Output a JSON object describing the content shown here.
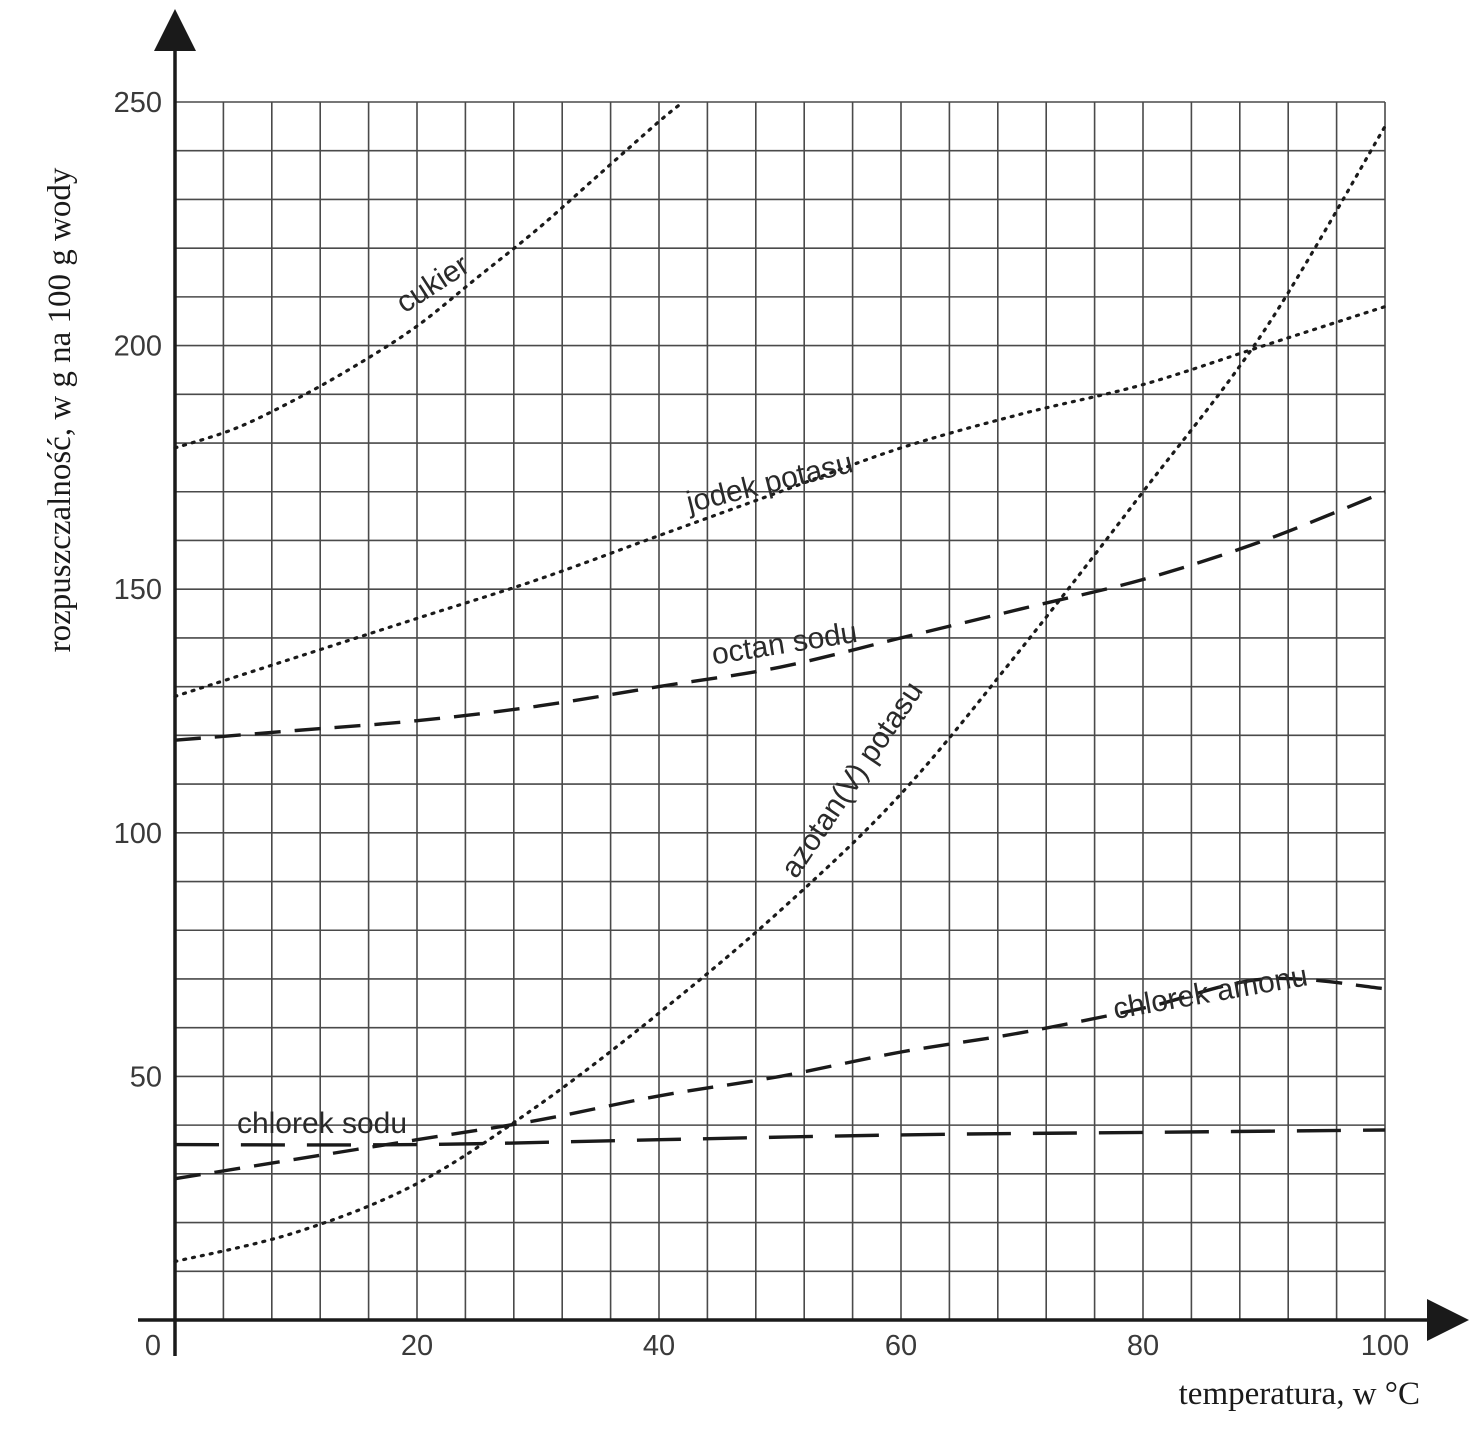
{
  "chart_data": {
    "type": "line",
    "title": "",
    "xlabel": "temperatura, w °C",
    "ylabel": "rozpuszczalność, w g na 100 g wody",
    "xlim": [
      0,
      100
    ],
    "ylim": [
      0,
      250
    ],
    "x_ticks": [
      0,
      20,
      40,
      60,
      80,
      100
    ],
    "y_ticks": [
      50,
      100,
      150,
      200,
      250
    ],
    "grid": true,
    "legend": "none",
    "series": [
      {
        "name": "cukier",
        "style": "dotted",
        "x": [
          0,
          5,
          10,
          15,
          20,
          25,
          30,
          35,
          40,
          42
        ],
        "y": [
          179,
          183,
          189,
          196,
          204,
          214,
          224,
          235,
          246,
          250
        ]
      },
      {
        "name": "jodek potasu",
        "style": "dotted",
        "x": [
          0,
          10,
          20,
          30,
          40,
          50,
          60,
          70,
          80,
          90,
          100
        ],
        "y": [
          128,
          136,
          144,
          152,
          161,
          170,
          179,
          186,
          192,
          200,
          208
        ]
      },
      {
        "name": "octan sodu",
        "style": "dashed",
        "x": [
          0,
          10,
          20,
          30,
          40,
          50,
          60,
          70,
          80,
          90,
          100
        ],
        "y": [
          119,
          121,
          123,
          126,
          130,
          134,
          140,
          146,
          152,
          160,
          170
        ]
      },
      {
        "name": "azotan(V) potasu",
        "style": "dotted",
        "x": [
          0,
          10,
          20,
          30,
          40,
          50,
          60,
          70,
          80,
          90,
          100
        ],
        "y": [
          12,
          18,
          28,
          44,
          63,
          84,
          108,
          138,
          170,
          203,
          245
        ]
      },
      {
        "name": "chlorek amonu",
        "style": "dashed",
        "x": [
          0,
          10,
          20,
          30,
          40,
          50,
          60,
          70,
          80,
          90,
          100
        ],
        "y": [
          29,
          33,
          37,
          41,
          46,
          50,
          55,
          59,
          64,
          70,
          68
        ]
      },
      {
        "name": "chlorek sodu",
        "style": "long-dashed",
        "x": [
          0,
          20,
          40,
          60,
          80,
          100
        ],
        "y": [
          36,
          36,
          37,
          38,
          38.5,
          39
        ]
      }
    ]
  }
}
